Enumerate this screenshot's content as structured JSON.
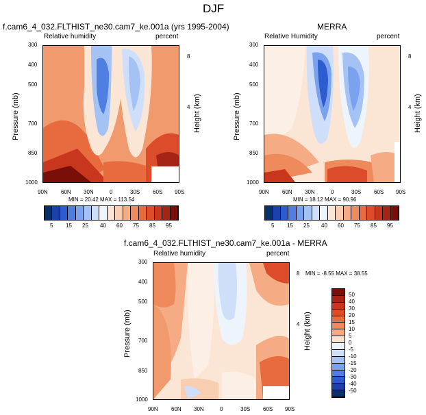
{
  "figure_title": "DJF",
  "panels": [
    {
      "title": "f.cam6_4_032.FLTHIST_ne30.cam7_ke.001a (yrs 1995-2004)",
      "left_label": "Relative humidity",
      "right_label": "percent",
      "ylabel": "Pressure (mb)",
      "ylabel_right": "Height (km)",
      "stats": "MIN =  20.42   MAX = 113.54"
    },
    {
      "title": "MERRA",
      "left_label": "Relative Humidity",
      "right_label": "percent",
      "ylabel": "Pressure (mb)",
      "ylabel_right": "Height (km)",
      "stats": "MIN =  18.12   MAX =  90.96"
    },
    {
      "title": "f.cam6_4_032.FLTHIST_ne30.cam7_ke.001a - MERRA",
      "left_label": "Relative humidity",
      "right_label": "percent",
      "ylabel": "Pressure (mb)",
      "ylabel_right": "Height (km)",
      "stats": "MIN =  -8.55   MAX = 38.55"
    }
  ],
  "axes": {
    "x_ticks": [
      "90N",
      "60N",
      "30N",
      "0",
      "30S",
      "60S",
      "90S"
    ],
    "p_ticks": [
      "300",
      "400",
      "500",
      "700",
      "850",
      "1000"
    ],
    "height_ticks": [
      "8",
      "4"
    ]
  },
  "chart_data": [
    {
      "type": "heatmap",
      "title": "f.cam6_4_032.FLTHIST_ne30.cam7_ke.001a (yrs 1995-2004)",
      "xlabel": "",
      "ylabel": "Pressure (mb)",
      "x_categories": [
        "90N",
        "60N",
        "30N",
        "0",
        "30S",
        "60S",
        "90S"
      ],
      "y_categories": [
        "300",
        "400",
        "500",
        "700",
        "850",
        "1000"
      ],
      "min": 20.42,
      "max": 113.54,
      "contour_levels": [
        5,
        10,
        15,
        20,
        25,
        30,
        35,
        40,
        50,
        60,
        65,
        70,
        75,
        80,
        85,
        90,
        95
      ]
    },
    {
      "type": "heatmap",
      "title": "MERRA",
      "ylabel": "Pressure (mb)",
      "x_categories": [
        "90N",
        "60N",
        "30N",
        "0",
        "30S",
        "60S",
        "90S"
      ],
      "y_categories": [
        "300",
        "400",
        "500",
        "700",
        "850",
        "1000"
      ],
      "min": 18.12,
      "max": 90.96,
      "contour_levels": [
        5,
        10,
        15,
        20,
        25,
        30,
        35,
        40,
        50,
        60,
        65,
        70,
        75,
        80,
        85,
        90,
        95
      ]
    },
    {
      "type": "heatmap",
      "title": "f.cam6_4_032.FLTHIST_ne30.cam7_ke.001a - MERRA",
      "ylabel": "Pressure (mb)",
      "x_categories": [
        "90N",
        "60N",
        "30N",
        "0",
        "30S",
        "60S",
        "90S"
      ],
      "y_categories": [
        "300",
        "400",
        "500",
        "700",
        "850",
        "1000"
      ],
      "min": -8.55,
      "max": 38.55,
      "contour_levels": [
        -50,
        -40,
        -30,
        -20,
        -15,
        -10,
        -5,
        0,
        5,
        10,
        15,
        20,
        25,
        30,
        40,
        50
      ]
    }
  ],
  "colorbar_main": {
    "labels": [
      "5",
      "15",
      "25",
      "40",
      "60",
      "75",
      "85",
      "95"
    ],
    "colors": [
      "#08306b",
      "#1c3fa8",
      "#2c5ccf",
      "#4f7fe0",
      "#7aa2ee",
      "#a5c2f5",
      "#cfdffa",
      "#eef4fc",
      "#fbe6d6",
      "#f8cdb0",
      "#f5ac84",
      "#ef8a5c",
      "#e86a3f",
      "#dc4c2a",
      "#c8361e",
      "#a52415",
      "#7a0f0a"
    ]
  },
  "colorbar_diff": {
    "labels": [
      "50",
      "40",
      "30",
      "20",
      "15",
      "10",
      "5",
      "0",
      "-5",
      "-10",
      "-15",
      "-20",
      "-30",
      "-40",
      "-50"
    ],
    "colors": [
      "#7a0f0a",
      "#a52415",
      "#c8361e",
      "#dc4c2a",
      "#e86a3f",
      "#ef8a5c",
      "#f5ac84",
      "#fbe6d6",
      "#eef4fc",
      "#cfdffa",
      "#a5c2f5",
      "#7aa2ee",
      "#4f7fe0",
      "#2c5ccf",
      "#1c3fa8",
      "#08306b"
    ]
  }
}
